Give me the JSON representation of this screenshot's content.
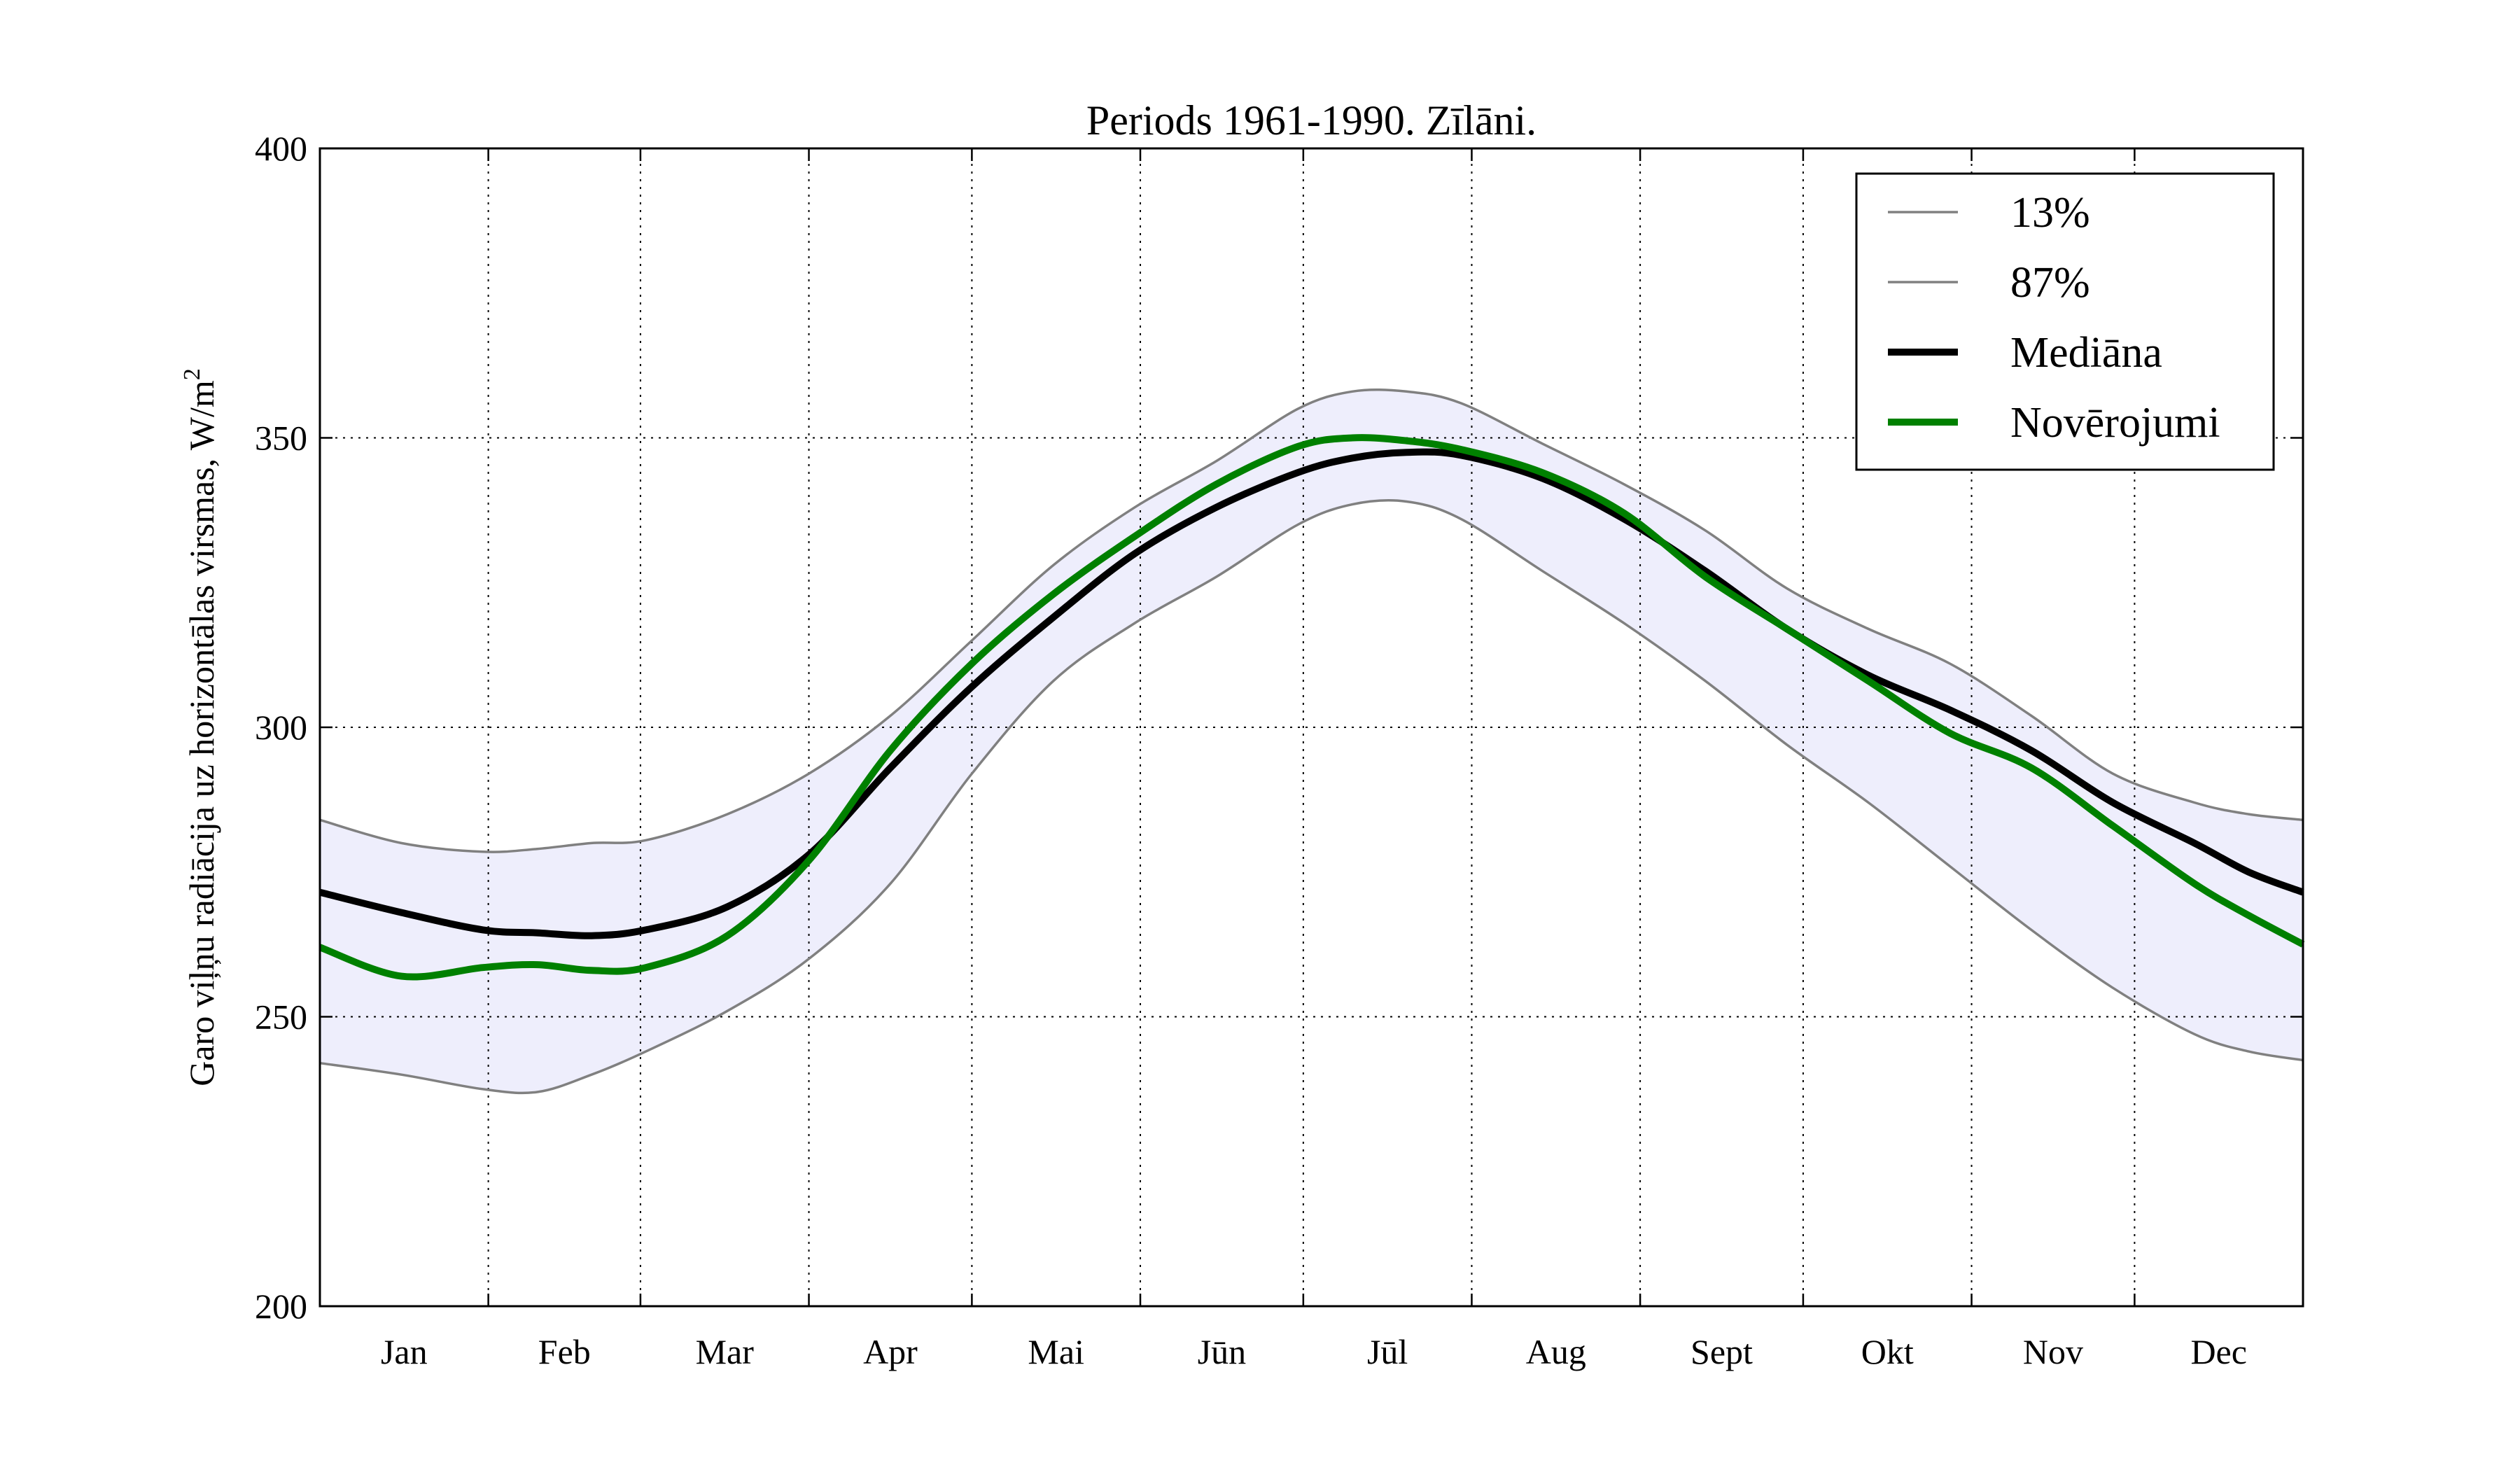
{
  "chart_data": {
    "type": "line",
    "title": "Periods 1961-1990. Zīlāni.",
    "xlabel": "",
    "ylabel": "Garo viļņu radiācija uz horizontālas virsmas, W/m²",
    "ylabel_unit_sup": "2",
    "categories": [
      "Jan",
      "Feb",
      "Mar",
      "Apr",
      "Mai",
      "Jūn",
      "Jūl",
      "Aug",
      "Sept",
      "Okt",
      "Nov",
      "Dec"
    ],
    "x_day_range": [
      0,
      365
    ],
    "ylim": [
      200,
      400
    ],
    "yticks": [
      200,
      250,
      300,
      350,
      400
    ],
    "grid": true,
    "legend_position": "top-right",
    "band_color": "#eeeefc",
    "series": [
      {
        "name": "13%",
        "color": "#808080",
        "width": "thin",
        "x": [
          0,
          15,
          30,
          40,
          50,
          60,
          75,
          90,
          105,
          120,
          135,
          150,
          165,
          180,
          190,
          200,
          210,
          225,
          240,
          255,
          270,
          285,
          300,
          315,
          330,
          345,
          355,
          365
        ],
        "y": [
          242,
          240,
          237.5,
          237,
          240,
          244,
          251,
          260,
          273,
          292,
          308,
          318,
          326,
          335,
          338.5,
          339,
          336,
          327,
          318,
          308,
          297,
          287,
          276,
          265,
          255,
          247,
          244,
          242.5
        ]
      },
      {
        "name": "87%",
        "color": "#808080",
        "width": "thin",
        "x": [
          0,
          15,
          30,
          40,
          50,
          60,
          75,
          90,
          105,
          120,
          135,
          150,
          165,
          180,
          190,
          200,
          210,
          225,
          240,
          255,
          270,
          285,
          300,
          315,
          330,
          345,
          355,
          365
        ],
        "y": [
          284,
          280,
          278.5,
          279,
          280,
          280.5,
          285,
          292,
          302,
          315,
          328,
          338,
          346,
          355,
          358,
          358,
          356,
          349,
          342,
          334,
          324,
          317,
          311,
          302,
          292,
          287,
          285,
          284
        ]
      },
      {
        "name": "Mediāna",
        "color": "#000000",
        "width": "thick",
        "x": [
          0,
          15,
          30,
          40,
          50,
          60,
          75,
          90,
          105,
          120,
          135,
          150,
          165,
          180,
          190,
          200,
          210,
          225,
          240,
          255,
          270,
          285,
          300,
          315,
          330,
          345,
          355,
          365
        ],
        "y": [
          271.5,
          268,
          265,
          264.5,
          264,
          265,
          269,
          278,
          293,
          307,
          319,
          330,
          338,
          344,
          346.5,
          347.5,
          347,
          343,
          336,
          327,
          317,
          309,
          303,
          296,
          287,
          280,
          275,
          271.5
        ]
      },
      {
        "name": "Novērojumi",
        "color": "#008000",
        "width": "thick",
        "x": [
          0,
          15,
          30,
          40,
          50,
          60,
          75,
          90,
          105,
          120,
          135,
          150,
          165,
          180,
          190,
          200,
          210,
          225,
          240,
          255,
          270,
          285,
          300,
          315,
          330,
          345,
          355,
          365
        ],
        "y": [
          262,
          257,
          258.5,
          259,
          258,
          258.5,
          264,
          277,
          296,
          311,
          323,
          333,
          342,
          348.5,
          350,
          349.5,
          348,
          344,
          337,
          326,
          317,
          308,
          299,
          293,
          283,
          273,
          267.5,
          262.5
        ]
      }
    ]
  }
}
